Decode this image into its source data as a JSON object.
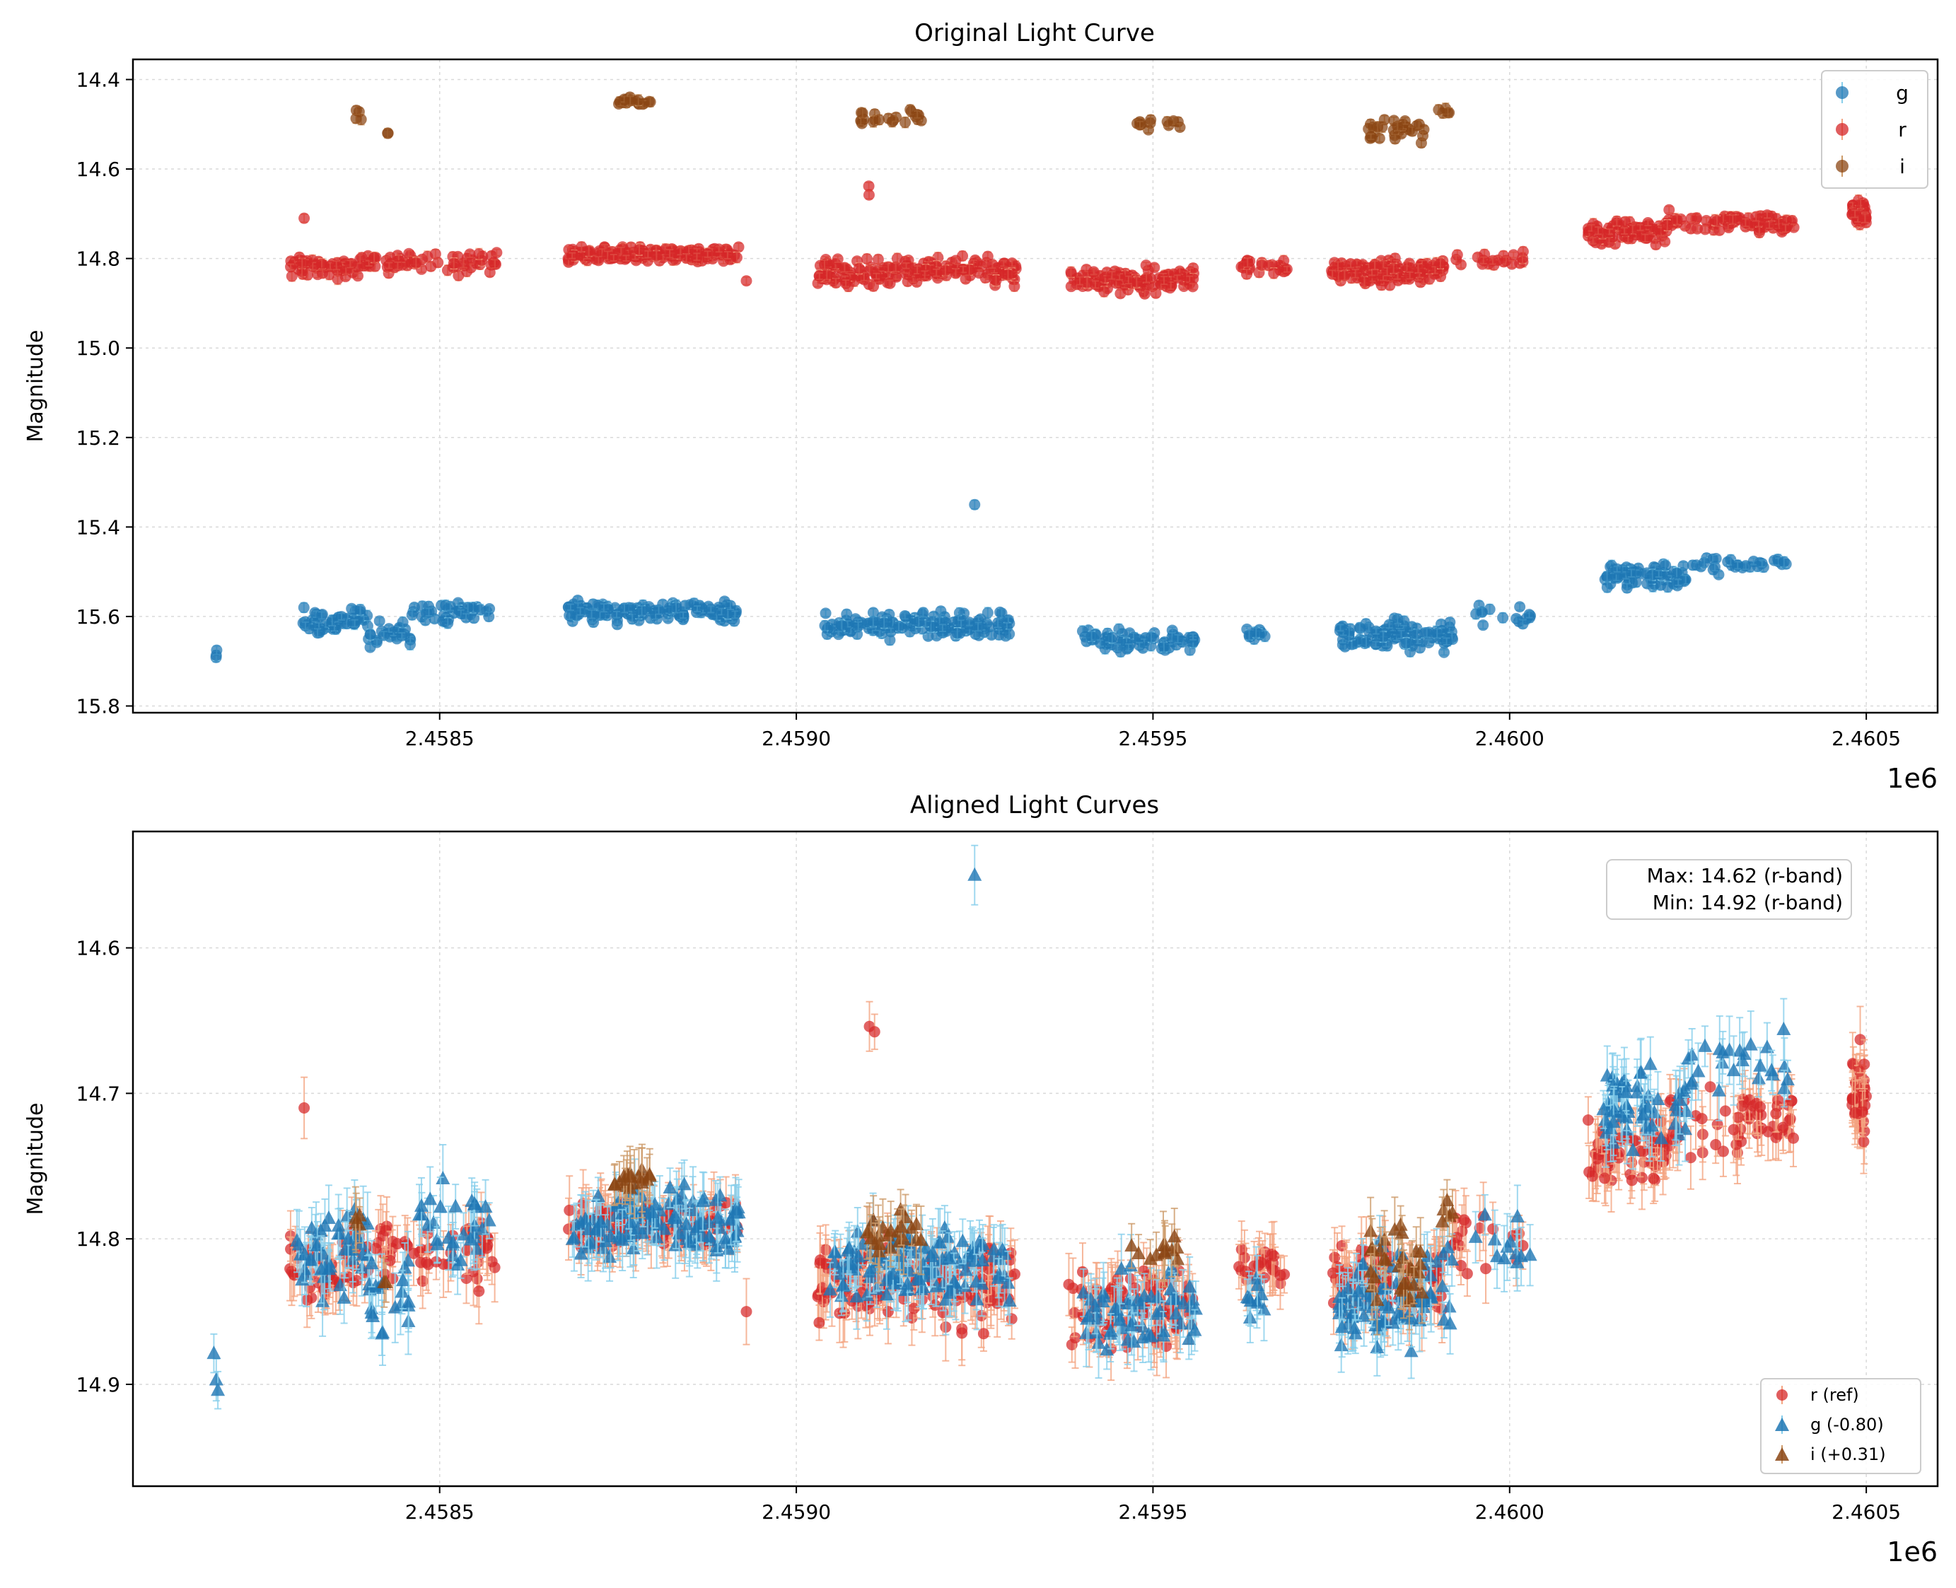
{
  "chart_data": [
    {
      "type": "scatter",
      "title": "Original Light Curve",
      "ylabel": "Magnitude",
      "xlabel": "",
      "x_offset_label": "1e6",
      "xlim": [
        2.45807,
        2.4606
      ],
      "ylim": [
        15.815,
        14.355
      ],
      "y_inverted": true,
      "grid": true,
      "xticks": [
        "2.4585",
        "2.4590",
        "2.4595",
        "2.4600",
        "2.4605"
      ],
      "xtick_values": [
        2.4585,
        2.459,
        2.4595,
        2.46,
        2.4605
      ],
      "yticks": [
        "14.4",
        "14.6",
        "14.8",
        "15.0",
        "15.2",
        "15.4",
        "15.6",
        "15.8"
      ],
      "ytick_values": [
        14.4,
        14.6,
        14.8,
        15.0,
        15.2,
        15.4,
        15.6,
        15.8
      ],
      "legend": {
        "position": "top-right",
        "entries": [
          "g",
          "r",
          "i"
        ]
      },
      "series": [
        {
          "name": "g",
          "color": "#1f77b4",
          "err_color": "#87ceeb",
          "marker": "circle",
          "segments": [
            {
              "x0": 2.45818,
              "x1": 2.45819,
              "y": 15.68,
              "spread": 0.05,
              "n": 3
            },
            {
              "x0": 2.4583,
              "x1": 2.4584,
              "y": 15.61,
              "spread": 0.05,
              "n": 55
            },
            {
              "x0": 2.4584,
              "x1": 2.45846,
              "y": 15.64,
              "spread": 0.05,
              "n": 25
            },
            {
              "x0": 2.45846,
              "x1": 2.45857,
              "y": 15.59,
              "spread": 0.05,
              "n": 40
            },
            {
              "x0": 2.45868,
              "x1": 2.45892,
              "y": 15.59,
              "spread": 0.04,
              "n": 150
            },
            {
              "x0": 2.45904,
              "x1": 2.4593,
              "y": 15.62,
              "spread": 0.05,
              "n": 150
            },
            {
              "x0": 2.45925,
              "x1": 2.45925,
              "y": 15.35,
              "spread": 0.0,
              "n": 1
            },
            {
              "x0": 2.4594,
              "x1": 2.45956,
              "y": 15.65,
              "spread": 0.05,
              "n": 70
            },
            {
              "x0": 2.45963,
              "x1": 2.45966,
              "y": 15.64,
              "spread": 0.03,
              "n": 12
            },
            {
              "x0": 2.45976,
              "x1": 2.45992,
              "y": 15.64,
              "spread": 0.06,
              "n": 110
            },
            {
              "x0": 2.45995,
              "x1": 2.46003,
              "y": 15.6,
              "spread": 0.05,
              "n": 15
            },
            {
              "x0": 2.46013,
              "x1": 2.46025,
              "y": 15.51,
              "spread": 0.05,
              "n": 75
            },
            {
              "x0": 2.46025,
              "x1": 2.46039,
              "y": 15.48,
              "spread": 0.04,
              "n": 30
            }
          ]
        },
        {
          "name": "r",
          "color": "#d62728",
          "err_color": "#f4a582",
          "marker": "circle",
          "segments": [
            {
              "x0": 2.45829,
              "x1": 2.4584,
              "y": 14.82,
              "spread": 0.04,
              "n": 60
            },
            {
              "x0": 2.4584,
              "x1": 2.45858,
              "y": 14.81,
              "spread": 0.04,
              "n": 60
            },
            {
              "x0": 2.45831,
              "x1": 2.45831,
              "y": 14.71,
              "spread": 0.0,
              "n": 1
            },
            {
              "x0": 2.45868,
              "x1": 2.45892,
              "y": 14.79,
              "spread": 0.03,
              "n": 160
            },
            {
              "x0": 2.45893,
              "x1": 2.45894,
              "y": 14.85,
              "spread": 0.0,
              "n": 1
            },
            {
              "x0": 2.45903,
              "x1": 2.45931,
              "y": 14.83,
              "spread": 0.05,
              "n": 190
            },
            {
              "x0": 2.4591,
              "x1": 2.45911,
              "y": 14.645,
              "spread": 0.04,
              "n": 2
            },
            {
              "x0": 2.45938,
              "x1": 2.45956,
              "y": 14.85,
              "spread": 0.05,
              "n": 110
            },
            {
              "x0": 2.45962,
              "x1": 2.45969,
              "y": 14.82,
              "spread": 0.03,
              "n": 25
            },
            {
              "x0": 2.45975,
              "x1": 2.45991,
              "y": 14.83,
              "spread": 0.05,
              "n": 140
            },
            {
              "x0": 2.45992,
              "x1": 2.46002,
              "y": 14.8,
              "spread": 0.04,
              "n": 20
            },
            {
              "x0": 2.46011,
              "x1": 2.46022,
              "y": 14.74,
              "spread": 0.04,
              "n": 90
            },
            {
              "x0": 2.46022,
              "x1": 2.4604,
              "y": 14.72,
              "spread": 0.04,
              "n": 80
            },
            {
              "x0": 2.46048,
              "x1": 2.4605,
              "y": 14.7,
              "spread": 0.05,
              "n": 45
            }
          ]
        },
        {
          "name": "i",
          "color": "#8b4513",
          "err_color": "#cd9b6a",
          "marker": "circle",
          "segments": [
            {
              "x0": 2.45838,
              "x1": 2.45839,
              "y": 14.48,
              "spread": 0.02,
              "n": 4
            },
            {
              "x0": 2.45842,
              "x1": 2.45843,
              "y": 14.52,
              "spread": 0.0,
              "n": 2
            },
            {
              "x0": 2.45874,
              "x1": 2.4588,
              "y": 14.45,
              "spread": 0.02,
              "n": 18
            },
            {
              "x0": 2.45909,
              "x1": 2.45918,
              "y": 14.485,
              "spread": 0.03,
              "n": 22
            },
            {
              "x0": 2.45947,
              "x1": 2.45954,
              "y": 14.5,
              "spread": 0.02,
              "n": 12
            },
            {
              "x0": 2.4598,
              "x1": 2.45988,
              "y": 14.51,
              "spread": 0.05,
              "n": 30
            },
            {
              "x0": 2.4599,
              "x1": 2.45992,
              "y": 14.47,
              "spread": 0.02,
              "n": 5
            }
          ]
        }
      ]
    },
    {
      "type": "scatter",
      "title": "Aligned Light Curves",
      "ylabel": "Magnitude",
      "xlabel": "",
      "x_offset_label": "1e6",
      "xlim": [
        2.45807,
        2.4606
      ],
      "ylim": [
        14.97,
        14.52
      ],
      "y_inverted": true,
      "grid": true,
      "xticks": [
        "2.4585",
        "2.4590",
        "2.4595",
        "2.4600",
        "2.4605"
      ],
      "xtick_values": [
        2.4585,
        2.459,
        2.4595,
        2.46,
        2.4605
      ],
      "yticks": [
        "14.6",
        "14.7",
        "14.8",
        "14.9"
      ],
      "ytick_values": [
        14.6,
        14.7,
        14.8,
        14.9
      ],
      "legend": {
        "position": "bottom-right",
        "entries": [
          "r (ref)",
          "g (-0.80)",
          "i (+0.31)"
        ]
      },
      "annotation": {
        "position": "top-right",
        "lines": [
          "Max: 14.62 (r-band)",
          "Min: 14.92 (r-band)"
        ]
      },
      "series": [
        {
          "name": "r (ref)",
          "color": "#d62728",
          "err_color": "#f4a582",
          "marker": "circle",
          "segments": [
            {
              "x0": 2.45829,
              "x1": 2.4584,
              "y": 14.82,
              "spread": 0.04,
              "n": 50
            },
            {
              "x0": 2.4584,
              "x1": 2.45858,
              "y": 14.81,
              "spread": 0.04,
              "n": 50
            },
            {
              "x0": 2.45831,
              "x1": 2.45831,
              "y": 14.71,
              "spread": 0.0,
              "n": 1
            },
            {
              "x0": 2.45868,
              "x1": 2.45892,
              "y": 14.79,
              "spread": 0.03,
              "n": 120
            },
            {
              "x0": 2.45893,
              "x1": 2.45894,
              "y": 14.85,
              "spread": 0.0,
              "n": 1
            },
            {
              "x0": 2.45903,
              "x1": 2.45931,
              "y": 14.83,
              "spread": 0.05,
              "n": 150
            },
            {
              "x0": 2.4591,
              "x1": 2.45911,
              "y": 14.645,
              "spread": 0.04,
              "n": 2
            },
            {
              "x0": 2.45938,
              "x1": 2.45956,
              "y": 14.85,
              "spread": 0.05,
              "n": 100
            },
            {
              "x0": 2.45962,
              "x1": 2.45969,
              "y": 14.82,
              "spread": 0.03,
              "n": 25
            },
            {
              "x0": 2.45975,
              "x1": 2.45991,
              "y": 14.83,
              "spread": 0.05,
              "n": 110
            },
            {
              "x0": 2.45992,
              "x1": 2.46002,
              "y": 14.8,
              "spread": 0.04,
              "n": 18
            },
            {
              "x0": 2.46011,
              "x1": 2.46022,
              "y": 14.74,
              "spread": 0.04,
              "n": 70
            },
            {
              "x0": 2.46022,
              "x1": 2.4604,
              "y": 14.72,
              "spread": 0.04,
              "n": 60
            },
            {
              "x0": 2.46048,
              "x1": 2.4605,
              "y": 14.7,
              "spread": 0.05,
              "n": 45
            }
          ]
        },
        {
          "name": "g (-0.80)",
          "color": "#1f77b4",
          "err_color": "#87ceeb",
          "marker": "triangle",
          "segments": [
            {
              "x0": 2.45818,
              "x1": 2.45819,
              "y": 14.88,
              "spread": 0.09,
              "n": 3
            },
            {
              "x0": 2.4583,
              "x1": 2.4584,
              "y": 14.81,
              "spread": 0.05,
              "n": 45
            },
            {
              "x0": 2.4584,
              "x1": 2.45846,
              "y": 14.84,
              "spread": 0.05,
              "n": 20
            },
            {
              "x0": 2.45846,
              "x1": 2.45857,
              "y": 14.79,
              "spread": 0.05,
              "n": 30
            },
            {
              "x0": 2.45868,
              "x1": 2.45892,
              "y": 14.79,
              "spread": 0.04,
              "n": 120
            },
            {
              "x0": 2.45904,
              "x1": 2.4593,
              "y": 14.82,
              "spread": 0.05,
              "n": 120
            },
            {
              "x0": 2.45925,
              "x1": 2.45925,
              "y": 14.55,
              "spread": 0.0,
              "n": 1
            },
            {
              "x0": 2.4594,
              "x1": 2.45956,
              "y": 14.85,
              "spread": 0.05,
              "n": 60
            },
            {
              "x0": 2.45963,
              "x1": 2.45966,
              "y": 14.84,
              "spread": 0.03,
              "n": 10
            },
            {
              "x0": 2.45976,
              "x1": 2.45992,
              "y": 14.84,
              "spread": 0.06,
              "n": 90
            },
            {
              "x0": 2.45995,
              "x1": 2.46003,
              "y": 14.8,
              "spread": 0.05,
              "n": 12
            },
            {
              "x0": 2.46013,
              "x1": 2.46025,
              "y": 14.71,
              "spread": 0.05,
              "n": 60
            },
            {
              "x0": 2.46025,
              "x1": 2.46039,
              "y": 14.68,
              "spread": 0.04,
              "n": 25
            }
          ]
        },
        {
          "name": "i (+0.31)",
          "color": "#8b4513",
          "err_color": "#cd9b6a",
          "marker": "triangle",
          "segments": [
            {
              "x0": 2.45838,
              "x1": 2.45839,
              "y": 14.79,
              "spread": 0.02,
              "n": 4
            },
            {
              "x0": 2.45842,
              "x1": 2.45843,
              "y": 14.83,
              "spread": 0.0,
              "n": 2
            },
            {
              "x0": 2.45874,
              "x1": 2.4588,
              "y": 14.76,
              "spread": 0.02,
              "n": 18
            },
            {
              "x0": 2.45909,
              "x1": 2.45918,
              "y": 14.795,
              "spread": 0.03,
              "n": 22
            },
            {
              "x0": 2.45947,
              "x1": 2.45954,
              "y": 14.81,
              "spread": 0.02,
              "n": 12
            },
            {
              "x0": 2.4598,
              "x1": 2.45988,
              "y": 14.82,
              "spread": 0.05,
              "n": 30
            },
            {
              "x0": 2.4599,
              "x1": 2.45992,
              "y": 14.78,
              "spread": 0.02,
              "n": 5
            }
          ]
        }
      ]
    }
  ]
}
